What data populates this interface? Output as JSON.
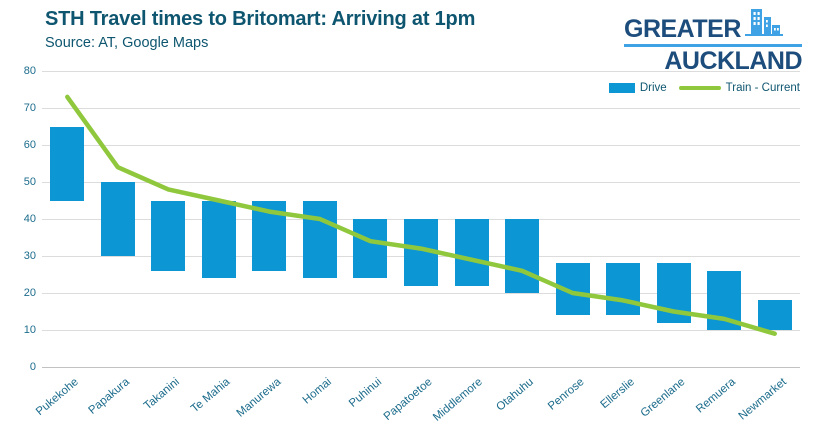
{
  "header": {
    "title": "STH Travel times to Britomart: Arriving at 1pm",
    "source": "Source: AT, Google Maps"
  },
  "logo": {
    "line1": "GREATER",
    "line2": "AUCKLAND",
    "icon": "city-skyline-icon",
    "text_color": "#1d4d7c",
    "accent_color": "#3ea2e5"
  },
  "colors": {
    "drive_bar": "#0d96d4",
    "train_line": "#90c83d",
    "title_text": "#0e5670",
    "axis_text": "#1c6c8c",
    "gridline": "#dcdcdc"
  },
  "chart_data": {
    "type": "combo: floating range bars + line",
    "title": "STH Travel times to Britomart: Arriving at 1pm",
    "subtitle": "Source: AT, Google Maps",
    "categories": [
      "Pukekohe",
      "Papakura",
      "Takanini",
      "Te Mahia",
      "Manurewa",
      "Homai",
      "Puhinui",
      "Papatoetoe",
      "Middlemore",
      "Otahuhu",
      "Penrose",
      "Ellerslie",
      "Greenlane",
      "Remuera",
      "Newmarket"
    ],
    "series": [
      {
        "name": "Drive",
        "type": "bar-range",
        "color": "#0d96d4",
        "ranges": [
          [
            45,
            65
          ],
          [
            30,
            50
          ],
          [
            26,
            45
          ],
          [
            24,
            45
          ],
          [
            26,
            45
          ],
          [
            24,
            45
          ],
          [
            24,
            40
          ],
          [
            22,
            40
          ],
          [
            22,
            40
          ],
          [
            20,
            40
          ],
          [
            14,
            28
          ],
          [
            14,
            28
          ],
          [
            12,
            28
          ],
          [
            10,
            26
          ],
          [
            10,
            18
          ]
        ]
      },
      {
        "name": "Train - Current",
        "type": "line",
        "color": "#90c83d",
        "values": [
          73,
          54,
          48,
          45,
          42,
          40,
          34,
          32,
          29,
          26,
          20,
          18,
          15,
          13,
          9
        ]
      }
    ],
    "ylim": [
      0,
      80
    ],
    "yticks": [
      0,
      10,
      20,
      30,
      40,
      50,
      60,
      70,
      80
    ],
    "xlabel": "",
    "ylabel": "",
    "grid": "horizontal",
    "legend_position": "top-right",
    "x_tick_rotation_deg": -40
  }
}
